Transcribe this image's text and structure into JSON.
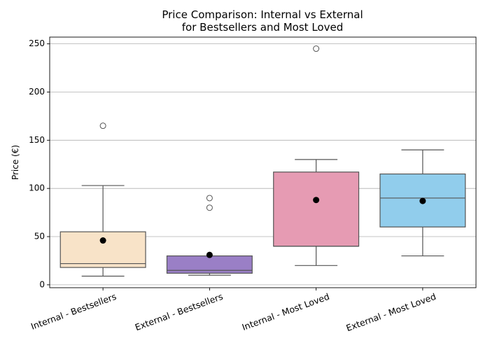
{
  "chart_data": {
    "type": "box",
    "title": [
      "Price Comparison: Internal vs External",
      "for Bestsellers and Most Loved"
    ],
    "xlabel": "",
    "ylabel": "Price (€)",
    "ylim": [
      -3,
      257
    ],
    "yticks": [
      0,
      50,
      100,
      150,
      200,
      250
    ],
    "grid": "y",
    "categories": [
      "Internal - Bestsellers",
      "External - Bestsellers",
      "Internal - Most Loved",
      "External - Most Loved"
    ],
    "boxes": [
      {
        "category": "Internal - Bestsellers",
        "whisker_low": 9,
        "q1": 18,
        "median": 22,
        "q3": 55,
        "whisker_high": 103,
        "mean": 46,
        "outliers": [
          165
        ],
        "color": "#f8e3c8"
      },
      {
        "category": "External - Bestsellers",
        "whisker_low": 10,
        "q1": 12,
        "median": 15,
        "q3": 30,
        "whisker_high": 30,
        "mean": 31,
        "outliers": [
          80,
          90
        ],
        "color": "#9a7fc6"
      },
      {
        "category": "Internal - Most Loved",
        "whisker_low": 20,
        "q1": 40,
        "median": 40,
        "q3": 117,
        "whisker_high": 130,
        "mean": 88,
        "outliers": [
          245
        ],
        "color": "#e69bb3"
      },
      {
        "category": "External - Most Loved",
        "whisker_low": 30,
        "q1": 60,
        "median": 90,
        "q3": 115,
        "whisker_high": 140,
        "mean": 87,
        "outliers": [],
        "color": "#91cdec"
      }
    ]
  }
}
